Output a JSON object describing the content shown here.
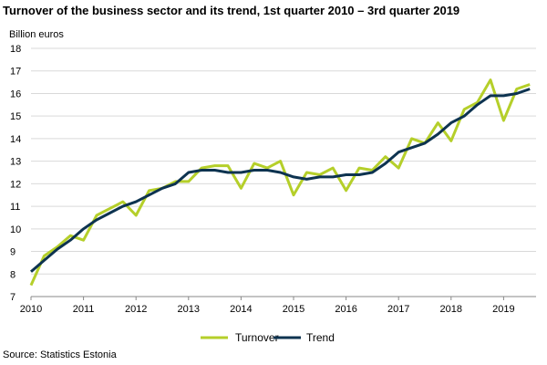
{
  "title": "Turnover of the business sector and its trend, 1st quarter 2010 – 3rd quarter 2019",
  "source": "Source: Statistics Estonia",
  "chart_data": {
    "type": "line",
    "ylabel": "Billion euros",
    "xlabel": "",
    "ylim": [
      7,
      18
    ],
    "yticks": [
      7,
      8,
      9,
      10,
      11,
      12,
      13,
      14,
      15,
      16,
      17,
      18
    ],
    "x_tick_labels": [
      "2010",
      "2011",
      "2012",
      "2013",
      "2014",
      "2015",
      "2016",
      "2017",
      "2018",
      "2019"
    ],
    "x": [
      "2010 Q1",
      "2010 Q2",
      "2010 Q3",
      "2010 Q4",
      "2011 Q1",
      "2011 Q2",
      "2011 Q3",
      "2011 Q4",
      "2012 Q1",
      "2012 Q2",
      "2012 Q3",
      "2012 Q4",
      "2013 Q1",
      "2013 Q2",
      "2013 Q3",
      "2013 Q4",
      "2014 Q1",
      "2014 Q2",
      "2014 Q3",
      "2014 Q4",
      "2015 Q1",
      "2015 Q2",
      "2015 Q3",
      "2015 Q4",
      "2016 Q1",
      "2016 Q2",
      "2016 Q3",
      "2016 Q4",
      "2017 Q1",
      "2017 Q2",
      "2017 Q3",
      "2017 Q4",
      "2018 Q1",
      "2018 Q2",
      "2018 Q3",
      "2018 Q4",
      "2019 Q1",
      "2019 Q2",
      "2019 Q3"
    ],
    "grid": "horizontal",
    "legend_position": "bottom",
    "series": [
      {
        "name": "Turnover",
        "color": "#b5cf2a",
        "values": [
          7.5,
          8.8,
          9.2,
          9.7,
          9.5,
          10.6,
          10.9,
          11.2,
          10.6,
          11.7,
          11.8,
          12.1,
          12.1,
          12.7,
          12.8,
          12.8,
          11.8,
          12.9,
          12.7,
          13.0,
          11.5,
          12.5,
          12.4,
          12.7,
          11.7,
          12.7,
          12.6,
          13.2,
          12.7,
          14.0,
          13.8,
          14.7,
          13.9,
          15.3,
          15.6,
          16.6,
          14.8,
          16.2,
          16.4
        ]
      },
      {
        "name": "Trend",
        "color": "#0d3350",
        "values": [
          8.1,
          8.6,
          9.1,
          9.5,
          10.0,
          10.4,
          10.7,
          11.0,
          11.2,
          11.5,
          11.8,
          12.0,
          12.5,
          12.6,
          12.6,
          12.5,
          12.5,
          12.6,
          12.6,
          12.5,
          12.3,
          12.2,
          12.3,
          12.3,
          12.4,
          12.4,
          12.5,
          12.9,
          13.4,
          13.6,
          13.8,
          14.2,
          14.7,
          15.0,
          15.5,
          15.9,
          15.9,
          16.0,
          16.2
        ]
      }
    ]
  }
}
